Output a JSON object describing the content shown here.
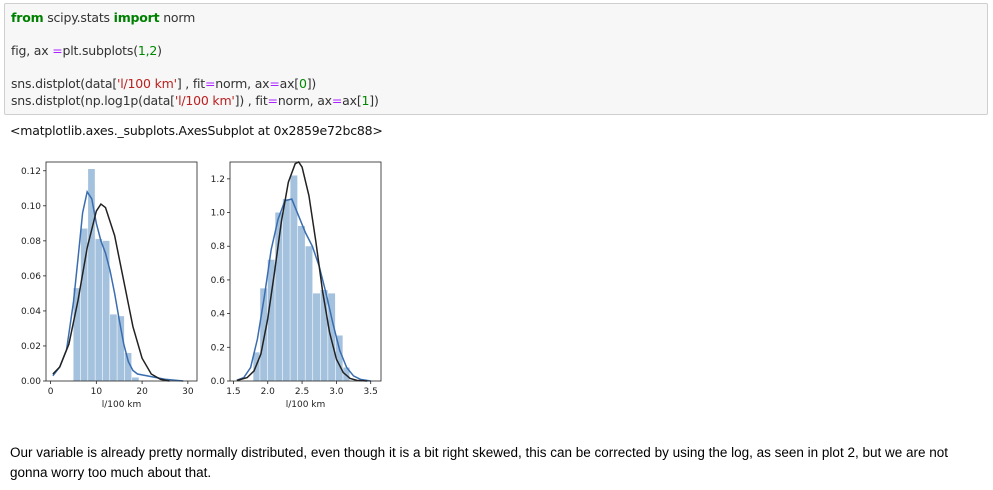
{
  "code": {
    "line1_kw1": "from",
    "line1_mod": " scipy.stats ",
    "line1_kw2": "import",
    "line1_rest": " norm",
    "line2_a": "fig, ax ",
    "line2_eq": "=",
    "line2_b": "plt.subplots(",
    "line2_args": "1,2",
    "line2_c": ")",
    "line3_a": "sns.distplot(data[",
    "line3_str": "'l/100 km'",
    "line3_b": "] , fit",
    "line3_eq1": "=",
    "line3_c": "norm, ax",
    "line3_eq2": "=",
    "line3_d": "ax[",
    "line3_idx": "0",
    "line3_e": "])",
    "line4_a": "sns.distplot(np.log1p(data[",
    "line4_str": "'l/100 km'",
    "line4_b": "]) , fit",
    "line4_eq1": "=",
    "line4_c": "norm, ax",
    "line4_eq2": "=",
    "line4_d": "ax[",
    "line4_idx": "1",
    "line4_e": "])"
  },
  "output_repr": "<matplotlib.axes._subplots.AxesSubplot at 0x2859e72bc88>",
  "markdown": "Our variable is already pretty normally distributed, even though it is a bit right skewed, this can be corrected by using the log, as seen in plot 2, but we are not gonna worry too much about that.",
  "colors": {
    "hist": "#a4c1dd",
    "kde": "#3a6db0",
    "fit": "#222222"
  },
  "chart_data": [
    {
      "type": "bar",
      "xlabel": "l/100 km",
      "ylabel": "",
      "xlim": [
        -1,
        32
      ],
      "ylim": [
        0,
        0.125
      ],
      "xticks": [
        0,
        10,
        20,
        30
      ],
      "yticks": [
        0.0,
        0.02,
        0.04,
        0.06,
        0.08,
        0.1,
        0.12
      ],
      "ytick_labels": [
        "0.00",
        "0.02",
        "0.04",
        "0.06",
        "0.08",
        "0.10",
        "0.12"
      ],
      "bins": [
        [
          5.0,
          6.6,
          0.053
        ],
        [
          6.6,
          8.2,
          0.087
        ],
        [
          8.2,
          9.8,
          0.121
        ],
        [
          9.8,
          11.4,
          0.081
        ],
        [
          11.4,
          13.0,
          0.08
        ],
        [
          13.0,
          14.6,
          0.038
        ],
        [
          14.6,
          16.2,
          0.037
        ],
        [
          16.2,
          17.8,
          0.016
        ],
        [
          17.8,
          19.4,
          0.002
        ]
      ],
      "kde": [
        [
          0.5,
          0.003
        ],
        [
          2,
          0.008
        ],
        [
          3.5,
          0.018
        ],
        [
          5,
          0.045
        ],
        [
          6,
          0.07
        ],
        [
          7,
          0.096
        ],
        [
          8,
          0.108
        ],
        [
          9,
          0.104
        ],
        [
          10,
          0.09
        ],
        [
          11,
          0.08
        ],
        [
          12,
          0.073
        ],
        [
          13,
          0.063
        ],
        [
          14,
          0.05
        ],
        [
          15,
          0.035
        ],
        [
          16,
          0.021
        ],
        [
          17,
          0.011
        ],
        [
          18,
          0.006
        ],
        [
          19,
          0.004
        ],
        [
          21,
          0.003
        ],
        [
          23,
          0.002
        ],
        [
          25,
          0.001
        ],
        [
          27,
          0.0005
        ],
        [
          29,
          0.0
        ]
      ],
      "fit": [
        [
          0.5,
          0.004
        ],
        [
          2,
          0.008
        ],
        [
          4,
          0.021
        ],
        [
          6,
          0.046
        ],
        [
          8,
          0.076
        ],
        [
          10,
          0.097
        ],
        [
          11,
          0.101
        ],
        [
          12,
          0.099
        ],
        [
          14,
          0.083
        ],
        [
          16,
          0.057
        ],
        [
          18,
          0.031
        ],
        [
          20,
          0.013
        ],
        [
          22,
          0.004
        ],
        [
          24,
          0.001
        ],
        [
          26,
          0.0
        ]
      ]
    },
    {
      "type": "bar",
      "xlabel": "l/100 km",
      "ylabel": "",
      "xlim": [
        1.45,
        3.65
      ],
      "ylim": [
        0,
        1.3
      ],
      "xticks": [
        1.5,
        2.0,
        2.5,
        3.0,
        3.5
      ],
      "xtick_labels": [
        "1.5",
        "2.0",
        "2.5",
        "3.0",
        "3.5"
      ],
      "yticks": [
        0.0,
        0.2,
        0.4,
        0.6,
        0.8,
        1.0,
        1.2
      ],
      "ytick_labels": [
        "0.0",
        "0.2",
        "0.4",
        "0.6",
        "0.8",
        "1.0",
        "1.2"
      ],
      "bins": [
        [
          1.79,
          1.89,
          0.17
        ],
        [
          1.89,
          2.0,
          0.55
        ],
        [
          2.0,
          2.11,
          0.72
        ],
        [
          2.11,
          2.22,
          1.0
        ],
        [
          2.22,
          2.33,
          1.08
        ],
        [
          2.33,
          2.44,
          1.22
        ],
        [
          2.44,
          2.55,
          0.92
        ],
        [
          2.55,
          2.66,
          0.8
        ],
        [
          2.66,
          2.77,
          0.52
        ],
        [
          2.77,
          2.88,
          0.54
        ],
        [
          2.88,
          2.99,
          0.52
        ],
        [
          2.99,
          3.1,
          0.27
        ],
        [
          3.1,
          3.2,
          0.08
        ]
      ],
      "kde": [
        [
          1.55,
          0.005
        ],
        [
          1.65,
          0.02
        ],
        [
          1.75,
          0.08
        ],
        [
          1.85,
          0.25
        ],
        [
          1.95,
          0.5
        ],
        [
          2.05,
          0.78
        ],
        [
          2.15,
          0.96
        ],
        [
          2.25,
          1.07
        ],
        [
          2.35,
          1.08
        ],
        [
          2.45,
          0.98
        ],
        [
          2.55,
          0.88
        ],
        [
          2.65,
          0.8
        ],
        [
          2.75,
          0.68
        ],
        [
          2.85,
          0.52
        ],
        [
          2.95,
          0.34
        ],
        [
          3.05,
          0.18
        ],
        [
          3.15,
          0.08
        ],
        [
          3.25,
          0.03
        ],
        [
          3.35,
          0.01
        ],
        [
          3.5,
          0.0
        ]
      ],
      "fit": [
        [
          1.55,
          0.003
        ],
        [
          1.7,
          0.02
        ],
        [
          1.8,
          0.06
        ],
        [
          1.9,
          0.16
        ],
        [
          2.0,
          0.37
        ],
        [
          2.1,
          0.65
        ],
        [
          2.2,
          0.95
        ],
        [
          2.3,
          1.18
        ],
        [
          2.4,
          1.29
        ],
        [
          2.45,
          1.3
        ],
        [
          2.5,
          1.27
        ],
        [
          2.6,
          1.1
        ],
        [
          2.7,
          0.83
        ],
        [
          2.8,
          0.53
        ],
        [
          2.9,
          0.29
        ],
        [
          3.0,
          0.13
        ],
        [
          3.1,
          0.05
        ],
        [
          3.2,
          0.015
        ],
        [
          3.3,
          0.004
        ],
        [
          3.45,
          0.0
        ]
      ]
    }
  ]
}
